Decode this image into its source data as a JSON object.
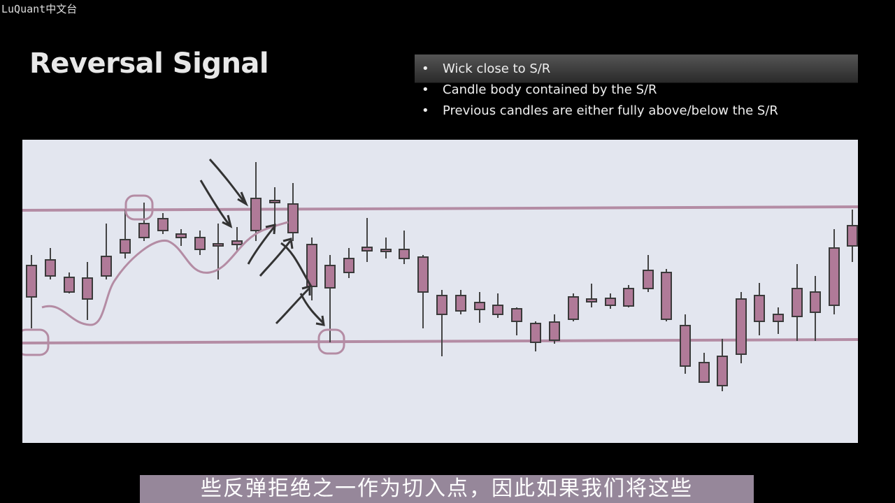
{
  "watermark": "LuQuant中文台",
  "title": "Reversal Signal",
  "bullets": [
    "Wick close to S/R",
    "Candle body contained by the S/R",
    "Previous candles are either fully above/below the S/R"
  ],
  "caption": "些反弹拒绝之一作为切入点，因此如果我们将这些"
}
